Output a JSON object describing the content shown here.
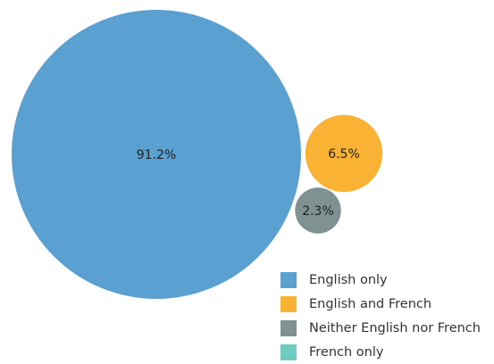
{
  "chart_data": {
    "type": "bubble",
    "title": "",
    "series": [
      {
        "name": "English only",
        "value": 91.2,
        "label": "91.2%",
        "color": "#5aa1d2"
      },
      {
        "name": "English and French",
        "value": 6.5,
        "label": "6.5%",
        "color": "#f9b233"
      },
      {
        "name": "Neither English nor French",
        "value": 2.3,
        "label": "2.3%",
        "color": "#7f9291"
      },
      {
        "name": "French only",
        "value": null,
        "label": "",
        "color": "#6fcabf"
      }
    ],
    "legend_position": "bottom-right"
  }
}
